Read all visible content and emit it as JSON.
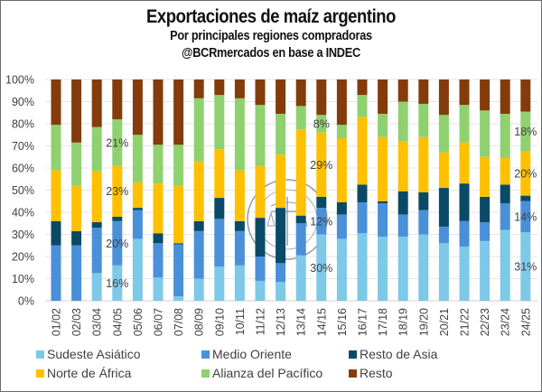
{
  "chart_data": {
    "type": "bar",
    "stacked": true,
    "normalized": true,
    "title": "Exportaciones de maíz argentino",
    "subtitle": "Por principales regiones compradoras",
    "source": "@BCRmercados en base a INDEC",
    "xlabel": "",
    "ylabel": "",
    "ylim": [
      0,
      100
    ],
    "yticks": [
      "0%",
      "10%",
      "20%",
      "30%",
      "40%",
      "50%",
      "60%",
      "70%",
      "80%",
      "90%",
      "100%"
    ],
    "grid": true,
    "legend_position": "bottom",
    "categories": [
      "01/02",
      "02/03",
      "03/04",
      "04/05",
      "05/06",
      "06/07",
      "07/08",
      "08/09",
      "09/10",
      "10/11",
      "11/12",
      "12/13",
      "13/14",
      "14/15",
      "15/16",
      "16/17",
      "17/18",
      "18/19",
      "19/20",
      "20/21",
      "21/22",
      "22/23",
      "23/24",
      "24/25"
    ],
    "series": [
      {
        "name": "Sudeste Asiático",
        "color": "#7ec8e8",
        "values": [
          0,
          0,
          12.5,
          16,
          28,
          10.5,
          2,
          10,
          15.5,
          16,
          9,
          8.5,
          20.5,
          30,
          28,
          30.5,
          29,
          29,
          30,
          26,
          24.5,
          27,
          32,
          31
        ]
      },
      {
        "name": "Medio Oriente",
        "color": "#4a90d9",
        "values": [
          25,
          25,
          20.5,
          20,
          13,
          15.5,
          23.5,
          21.5,
          21.5,
          15.5,
          11,
          8.5,
          14.5,
          12,
          11,
          14,
          15,
          10,
          11,
          7.5,
          11.5,
          8.5,
          12,
          14
        ]
      },
      {
        "name": "Resto de Asia",
        "color": "#0b4a66",
        "values": [
          11,
          6.5,
          2.5,
          2,
          1,
          4.5,
          0.5,
          4.5,
          9.5,
          4.5,
          17.5,
          25,
          3.5,
          5,
          5.5,
          8,
          1,
          10.5,
          8,
          17.5,
          17,
          11.5,
          8.5,
          2.5
        ]
      },
      {
        "name": "Norte de África",
        "color": "#ffc000",
        "values": [
          23,
          20.5,
          23,
          23,
          11.5,
          22.5,
          26,
          27,
          22,
          23,
          23.5,
          24,
          39,
          29,
          29,
          30.5,
          29,
          22.5,
          25,
          16,
          18.5,
          18,
          12,
          20
        ]
      },
      {
        "name": "Alianza del Pacífico",
        "color": "#8fd16f",
        "values": [
          20.5,
          19.5,
          20,
          21,
          21.5,
          17.5,
          18.5,
          28.5,
          24.5,
          32.5,
          27.5,
          18.5,
          10.5,
          8,
          6,
          10,
          10.5,
          18,
          15,
          17,
          17,
          21,
          20,
          18
        ]
      },
      {
        "name": "Resto",
        "color": "#843c0c",
        "values": [
          20.5,
          28.5,
          21.5,
          18,
          25,
          29.5,
          29.5,
          8.5,
          7,
          8.5,
          11.5,
          15.5,
          12,
          16,
          20.5,
          7,
          15.5,
          10,
          11,
          16,
          11.5,
          14,
          15.5,
          14.5
        ]
      }
    ],
    "annotations": [
      {
        "category": "04/05",
        "series": "Sudeste Asiático",
        "text": "16%"
      },
      {
        "category": "04/05",
        "series": "Medio Oriente",
        "text": "20%"
      },
      {
        "category": "04/05",
        "series": "Norte de África",
        "text": "23%"
      },
      {
        "category": "04/05",
        "series": "Alianza del Pacífico",
        "text": "21%"
      },
      {
        "category": "14/15",
        "series": "Sudeste Asiático",
        "text": "30%"
      },
      {
        "category": "14/15",
        "series": "Medio Oriente",
        "text": "12%"
      },
      {
        "category": "14/15",
        "series": "Norte de África",
        "text": "29%"
      },
      {
        "category": "14/15",
        "series": "Alianza del Pacífico",
        "text": "8%"
      },
      {
        "category": "24/25",
        "series": "Sudeste Asiático",
        "text": "31%"
      },
      {
        "category": "24/25",
        "series": "Medio Oriente",
        "text": "14%"
      },
      {
        "category": "24/25",
        "series": "Norte de África",
        "text": "20%"
      },
      {
        "category": "24/25",
        "series": "Alianza del Pacífico",
        "text": "18%"
      }
    ],
    "watermark": "Bolsa de Comercio de Rosario seal"
  }
}
